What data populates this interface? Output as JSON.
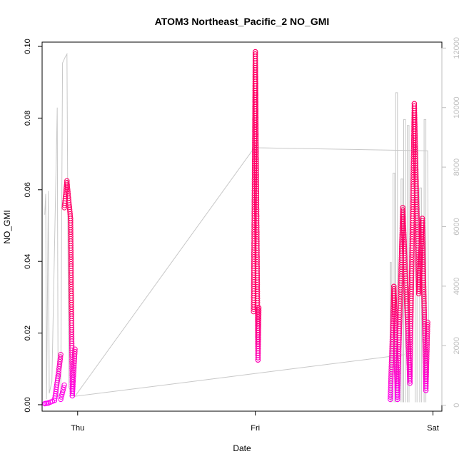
{
  "chart_data": {
    "type": "scatter",
    "title": "ATOM3 Northeast_Pacific_2 NO_GMI",
    "xlabel": "Date",
    "ylabel": "NO_GMI",
    "xlim": [
      -0.2,
      2.05
    ],
    "ylim": [
      -0.0018,
      0.1012
    ],
    "x_ticks": [
      {
        "value": 0,
        "label": "Thu"
      },
      {
        "value": 1,
        "label": "Fri"
      },
      {
        "value": 2,
        "label": "Sat"
      }
    ],
    "y_ticks": [
      0.0,
      0.02,
      0.04,
      0.06,
      0.08,
      0.1
    ],
    "y_tick_labels": [
      "0.00",
      "0.02",
      "0.04",
      "0.06",
      "0.08",
      "0.10"
    ],
    "y2_lim": [
      -200,
      12200
    ],
    "y2_ticks": [
      0,
      2000,
      4000,
      6000,
      8000,
      10000,
      12000
    ],
    "y2_tick_labels": [
      "0",
      "2000",
      "4000",
      "6000",
      "8000",
      "10000",
      "12000"
    ],
    "colors": {
      "low": "#ff00ff",
      "high": "#ff0066",
      "altitude_line": "#c8c8c8",
      "axis": "#000000",
      "right_axis": "#bfbfbf"
    },
    "series": [
      {
        "kind": "points",
        "segments": [
          {
            "x0": -0.185,
            "x1": -0.165,
            "y0": 0.0003,
            "y1": 0.0005
          },
          {
            "x0": -0.165,
            "x1": -0.13,
            "y0": 0.0005,
            "y1": 0.0012
          },
          {
            "x0": -0.13,
            "x1": -0.11,
            "y0": 0.0012,
            "y1": 0.008
          },
          {
            "x0": -0.11,
            "x1": -0.095,
            "y0": 0.008,
            "y1": 0.014
          },
          {
            "x0": -0.095,
            "x1": -0.075,
            "y0": 0.0015,
            "y1": 0.0055
          },
          {
            "x0": -0.075,
            "x1": -0.06,
            "y0": 0.055,
            "y1": 0.0625
          },
          {
            "x0": -0.06,
            "x1": -0.04,
            "y0": 0.062,
            "y1": 0.052
          },
          {
            "x0": -0.04,
            "x1": -0.03,
            "y0": 0.052,
            "y1": 0.0025
          },
          {
            "x0": -0.03,
            "x1": -0.015,
            "y0": 0.0025,
            "y1": 0.0155
          },
          {
            "x0": 0.99,
            "x1": 1.0,
            "y0": 0.026,
            "y1": 0.0985
          },
          {
            "x0": 1.0,
            "x1": 1.015,
            "y0": 0.0985,
            "y1": 0.0125
          },
          {
            "x0": 1.015,
            "x1": 1.02,
            "y0": 0.0125,
            "y1": 0.027
          },
          {
            "x0": 1.76,
            "x1": 1.78,
            "y0": 0.0015,
            "y1": 0.033
          },
          {
            "x0": 1.78,
            "x1": 1.8,
            "y0": 0.033,
            "y1": 0.0015
          },
          {
            "x0": 1.8,
            "x1": 1.83,
            "y0": 0.0015,
            "y1": 0.055
          },
          {
            "x0": 1.83,
            "x1": 1.87,
            "y0": 0.055,
            "y1": 0.006
          },
          {
            "x0": 1.87,
            "x1": 1.895,
            "y0": 0.006,
            "y1": 0.084
          },
          {
            "x0": 1.895,
            "x1": 1.92,
            "y0": 0.084,
            "y1": 0.031
          },
          {
            "x0": 1.92,
            "x1": 1.94,
            "y0": 0.031,
            "y1": 0.052
          },
          {
            "x0": 1.94,
            "x1": 1.96,
            "y0": 0.052,
            "y1": 0.004
          },
          {
            "x0": 1.96,
            "x1": 1.97,
            "y0": 0.004,
            "y1": 0.023
          }
        ]
      },
      {
        "kind": "altitude_line",
        "axis": "right",
        "points": [
          [
            -0.185,
            6400
          ],
          [
            -0.18,
            7100
          ],
          [
            -0.175,
            200
          ],
          [
            -0.165,
            7200
          ],
          [
            -0.16,
            400
          ],
          [
            -0.145,
            800
          ],
          [
            -0.115,
            10000
          ],
          [
            -0.11,
            300
          ],
          [
            -0.095,
            400
          ],
          [
            -0.085,
            11500
          ],
          [
            -0.07,
            11700
          ],
          [
            -0.06,
            11800
          ],
          [
            -0.05,
            600
          ],
          [
            -0.02,
            300
          ],
          [
            -0.015,
            300
          ],
          [
            1.0,
            8700
          ],
          [
            1.015,
            8650
          ],
          [
            1.97,
            8550
          ],
          [
            1.975,
            2800
          ],
          [
            1.98,
            2800
          ]
        ],
        "path_lines": [
          [
            [
              -0.015,
              300
            ],
            [
              1.84,
              1700
            ]
          ]
        ],
        "spikes": [
          [
            1.76,
            1.765,
            4800
          ],
          [
            1.775,
            1.785,
            7800
          ],
          [
            1.79,
            1.8,
            10500
          ],
          [
            1.82,
            1.83,
            7600
          ],
          [
            1.835,
            1.845,
            9600
          ],
          [
            1.855,
            1.865,
            9400
          ],
          [
            1.9,
            1.91,
            8700
          ],
          [
            1.925,
            1.935,
            7300
          ],
          [
            1.95,
            1.96,
            9600
          ]
        ]
      }
    ]
  }
}
